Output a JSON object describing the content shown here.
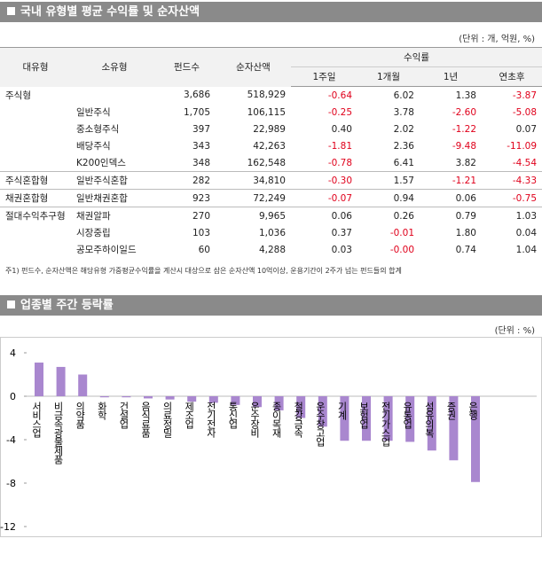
{
  "table_section": {
    "title": "국내 유형별 평균 수익률 및 순자산액",
    "unit": "(단위 : 개, 억원, %)",
    "headers": {
      "row1": [
        "대유형",
        "소유형",
        "펀드수",
        "순자산액",
        "수익률"
      ],
      "row2": [
        "1주일",
        "1개월",
        "1년",
        "연초후"
      ]
    },
    "rows": [
      [
        "주식형",
        null,
        "3,686",
        "518,929",
        "-0.64",
        "6.02",
        "1.38",
        "-3.87"
      ],
      [
        null,
        "일반주식",
        "1,705",
        "106,115",
        "-0.25",
        "3.78",
        "-2.60",
        "-5.08"
      ],
      [
        null,
        "중소형주식",
        "397",
        "22,989",
        "0.40",
        "2.02",
        "-1.22",
        "0.07"
      ],
      [
        null,
        "배당주식",
        "343",
        "42,263",
        "-1.81",
        "2.36",
        "-9.48",
        "-11.09"
      ],
      [
        null,
        "K200인덱스",
        "348",
        "162,548",
        "-0.78",
        "6.41",
        "3.82",
        "-4.54"
      ],
      [
        "주식혼합형",
        "일반주식혼합",
        "282",
        "34,810",
        "-0.30",
        "1.57",
        "-1.21",
        "-4.33"
      ],
      [
        "채권혼합형",
        "일반채권혼합",
        "923",
        "72,249",
        "-0.07",
        "0.94",
        "0.06",
        "-0.75"
      ],
      [
        "절대수익추구형",
        "채권알파",
        "270",
        "9,965",
        "0.06",
        "0.26",
        "0.79",
        "1.03"
      ],
      [
        null,
        "시장중립",
        "103",
        "1,036",
        "0.37",
        "-0.01",
        "1.80",
        "0.04"
      ],
      [
        null,
        "공모주하이일드",
        "60",
        "4,288",
        "0.03",
        "-0.00",
        "0.74",
        "1.04"
      ]
    ],
    "note": "주1) 펀드수, 순자산액은 해당유형 가중평균수익률을 계산시 대상으로 삼은 순자산액 10억이상, 운용기간이 2주가 넘는 펀드들의 합계"
  },
  "chart_data": {
    "type": "bar",
    "title": "업종별 주간 등락률",
    "unit": "(단위 : %)",
    "color": "#a987cf",
    "categories": [
      "서비스업",
      "비금속광물제품",
      "의약품",
      "화학",
      "건설업",
      "음식료품",
      "의료정밀",
      "제조업",
      "전기전자",
      "통신업",
      "운수장비",
      "종이목재",
      "철강금속",
      "운수창고업",
      "기계",
      "보험업",
      "전기가스업",
      "유통업",
      "섬유의복",
      "증권",
      "은행"
    ],
    "values": [
      3.1,
      2.7,
      2.0,
      -0.1,
      -0.1,
      -0.2,
      -0.3,
      -0.5,
      -0.6,
      -0.8,
      -1.0,
      -1.3,
      -2.0,
      -2.8,
      -4.1,
      -4.1,
      -4.1,
      -4.2,
      -5.0,
      -5.9,
      -7.9
    ],
    "ylim": [
      -12,
      4
    ],
    "yticks": [
      4,
      0,
      -4,
      -8,
      -12
    ]
  }
}
